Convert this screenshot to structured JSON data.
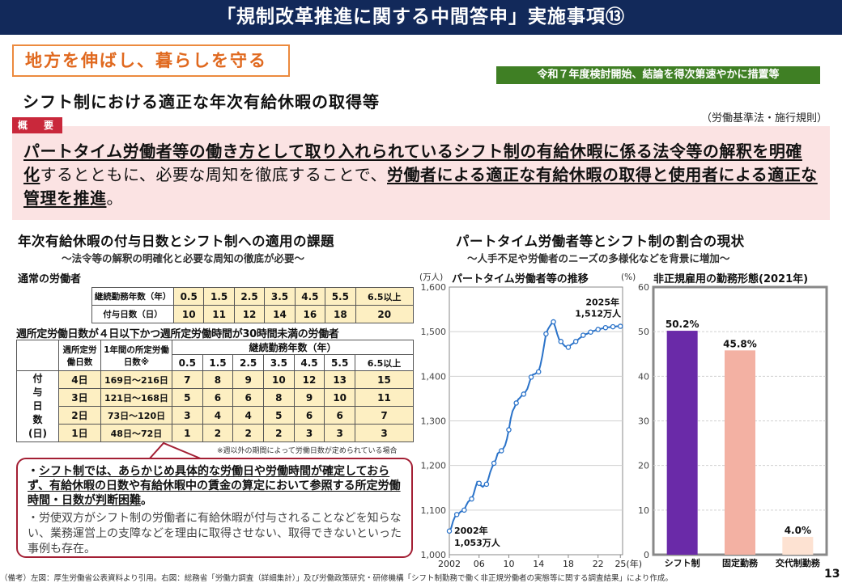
{
  "header": {
    "title": "「規制改革推進に関する中間答申」実施事項⑬"
  },
  "category": "地方を伸ばし、暮らしを守る",
  "schedule": "令和７年度検討開始、結論を得次第速やかに措置等",
  "subtitle": "シフト制における適正な年次有給休暇の取得等",
  "law": "（労働基準法・施行規則）",
  "outline_tag": "概　要",
  "summary": {
    "s1": "パートタイム労働者等の働き方として取り入れられているシフト制の有給休暇に係る法令等の解釈を明確化",
    "s2": "するとともに、必要な周知を徹底することで、",
    "s3": "労働者による適正な有給休暇の取得と使用者による適正な管理を推進",
    "s4": "。"
  },
  "left": {
    "title": "年次有給休暇の付与日数とシフト制への適用の課題",
    "subtitle": "～法令等の解釈の明確化と必要な周知の徹底が必要～",
    "normal_label": "通常の労働者",
    "t1": {
      "row1_label": "継続勤務年数（年）",
      "row2_label": "付与日数（日）",
      "years": [
        "0.5",
        "1.5",
        "2.5",
        "3.5",
        "4.5",
        "5.5",
        "6.5以上"
      ],
      "days": [
        "10",
        "11",
        "12",
        "14",
        "16",
        "18",
        "20"
      ]
    },
    "part_label": "週所定労働日数が４日以下かつ週所定労働時間が30時間未満の労働者",
    "t2": {
      "h_days": "週所定労働日数",
      "h_year_days": "1年間の所定労働日数※",
      "h_tenure": "継続勤務年数（年）",
      "side_label": "付与日数(日)",
      "years": [
        "0.5",
        "1.5",
        "2.5",
        "3.5",
        "4.5",
        "5.5",
        "6.5以上"
      ],
      "rows": [
        {
          "d": "4日",
          "yd": "169日～216日",
          "v": [
            "7",
            "8",
            "9",
            "10",
            "12",
            "13",
            "15"
          ]
        },
        {
          "d": "3日",
          "yd": "121日～168日",
          "v": [
            "5",
            "6",
            "6",
            "8",
            "9",
            "10",
            "11"
          ]
        },
        {
          "d": "2日",
          "yd": "73日～120日",
          "v": [
            "3",
            "4",
            "4",
            "5",
            "6",
            "6",
            "7"
          ]
        },
        {
          "d": "1日",
          "yd": "48日～72日",
          "v": [
            "1",
            "2",
            "2",
            "2",
            "3",
            "3",
            "3"
          ]
        }
      ]
    },
    "t2_note": "※週以外の期間によって労働日数が定められている場合",
    "callout": {
      "b1a": "・",
      "b1b": "シフト制では、あらかじめ具体的な労働日や労働時間が確定しておらず、有給休暇の日数や有給休暇中の賃金の算定において参照する所定労働時間・日数が判断困難",
      "b1c": "。",
      "b2": "・労使双方がシフト制の労働者に有給休暇が付与されることなどを知らない、業務運営上の支障などを理由に取得させない、取得できないといった事例も存在。"
    }
  },
  "right": {
    "title": "パートタイム労働者等とシフト制の割合の現状",
    "subtitle": "～人手不足や労働者のニーズの多様化などを背景に増加～"
  },
  "chart_data": [
    {
      "type": "line",
      "title": "パートタイム労働者等の推移",
      "ylabel": "(万人)",
      "ylim": [
        1000,
        1600
      ],
      "yticks": [
        "1,000",
        "1,100",
        "1,200",
        "1,300",
        "1,400",
        "1,500",
        "1,600"
      ],
      "xticks": [
        "2002",
        "06",
        "10",
        "14",
        "18",
        "22",
        "25(年)"
      ],
      "x": [
        2002.0,
        2002.25,
        2002.5,
        2002.75,
        2003.0,
        2003.25,
        2003.5,
        2003.75,
        2004.0,
        2004.25,
        2004.5,
        2004.75,
        2005.0,
        2005.25,
        2005.5,
        2005.75,
        2006.0,
        2006.25,
        2006.5,
        2006.75,
        2007.0,
        2007.25,
        2007.5,
        2007.75,
        2008.0,
        2008.25,
        2008.5,
        2008.75,
        2009.0,
        2009.25,
        2009.5,
        2009.75,
        2010.0,
        2010.25,
        2010.5,
        2010.75,
        2011.0,
        2011.25,
        2011.5,
        2011.75,
        2012.0,
        2012.25,
        2012.5,
        2012.75,
        2013.0,
        2013.25,
        2013.5,
        2013.75,
        2014.0,
        2014.25,
        2014.5,
        2014.75,
        2015.0,
        2015.25,
        2015.5,
        2015.75,
        2016.0,
        2016.25,
        2016.5,
        2016.75,
        2017.0,
        2017.25,
        2017.5,
        2017.75,
        2018.0,
        2018.25,
        2018.5,
        2018.75,
        2019.0,
        2019.25,
        2019.5,
        2019.75,
        2020.0,
        2020.25,
        2020.5,
        2020.75,
        2021.0,
        2021.25,
        2021.5,
        2021.75,
        2022.0,
        2022.25,
        2022.5,
        2022.75,
        2023.0,
        2023.25,
        2023.5,
        2023.75,
        2024.0,
        2024.25,
        2024.5,
        2024.75,
        2025.0
      ],
      "series": [
        {
          "values": [
            1053,
            1060,
            1075,
            1085,
            1090,
            1092,
            1096,
            1098,
            1100,
            1110,
            1118,
            1122,
            1125,
            1135,
            1150,
            1163,
            1160,
            1155,
            1152,
            1156,
            1158,
            1170,
            1185,
            1196,
            1205,
            1213,
            1227,
            1230,
            1233,
            1238,
            1245,
            1260,
            1280,
            1305,
            1322,
            1330,
            1340,
            1348,
            1352,
            1357,
            1360,
            1365,
            1372,
            1385,
            1398,
            1404,
            1405,
            1408,
            1410,
            1425,
            1445,
            1470,
            1495,
            1505,
            1512,
            1518,
            1522,
            1510,
            1495,
            1483,
            1478,
            1473,
            1468,
            1466,
            1465,
            1469,
            1472,
            1475,
            1478,
            1481,
            1485,
            1488,
            1492,
            1494,
            1495,
            1497,
            1499,
            1501,
            1502,
            1504,
            1505,
            1506,
            1507,
            1508,
            1509,
            1510,
            1510,
            1511,
            1511,
            1511,
            1512,
            1512,
            1512
          ]
        }
      ],
      "annotations": [
        {
          "a": "2002年",
          "b": "1,053万人"
        },
        {
          "a": "2025年",
          "b": "1,512万人"
        }
      ]
    },
    {
      "type": "bar",
      "title": "非正規雇用の勤務形態(2021年)",
      "ylabel": "(%)",
      "ylim": [
        0,
        60
      ],
      "yticks": [
        "0",
        "10",
        "20",
        "30",
        "40",
        "50",
        "60"
      ],
      "categories": [
        "シフト制",
        "固定勤務",
        "交代制勤務"
      ],
      "values": [
        50.2,
        45.8,
        4.0
      ],
      "value_labels": [
        "50.2%",
        "45.8%",
        "4.0%"
      ],
      "colors": [
        "#6a2aa8",
        "#f3b1a3",
        "#fde2d2"
      ]
    }
  ],
  "footer": "（備考）左図：厚生労働省公表資料より引用。右図：総務省「労働力調査（詳細集計）」及び労働政策研究・研修機構「シフト制勤務で働く非正規労働者の実態等に関する調査結果」により作成。",
  "page_number": "13"
}
